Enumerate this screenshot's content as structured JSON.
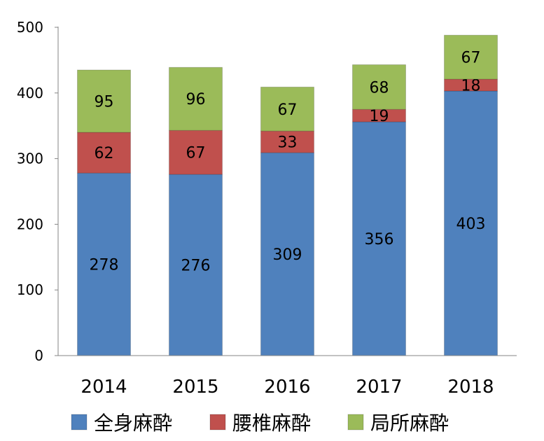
{
  "chart_data": {
    "type": "bar",
    "stacked": true,
    "categories": [
      "2014",
      "2015",
      "2016",
      "2017",
      "2018"
    ],
    "series": [
      {
        "name": "全身麻酔",
        "values": [
          278,
          276,
          309,
          356,
          403
        ],
        "color": "#4F81BD"
      },
      {
        "name": "腰椎麻酔",
        "values": [
          62,
          67,
          33,
          19,
          18
        ],
        "color": "#C0504D"
      },
      {
        "name": "局所麻酔",
        "values": [
          95,
          96,
          67,
          68,
          67
        ],
        "color": "#9BBB59"
      }
    ],
    "ylim": [
      0,
      500
    ],
    "yticks": [
      0,
      100,
      200,
      300,
      400,
      500
    ],
    "title": "",
    "xlabel": "",
    "ylabel": "",
    "grid": false,
    "legend_position": "bottom"
  }
}
